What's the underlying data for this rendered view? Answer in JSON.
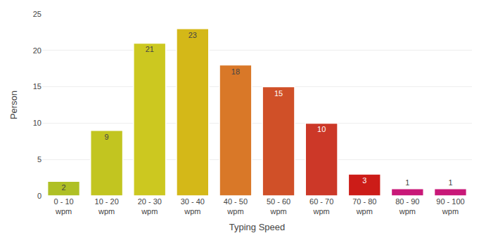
{
  "chart_data": {
    "type": "bar",
    "xlabel": "Typing Speed",
    "ylabel": "Person",
    "categories": [
      "0 - 10\nwpm",
      "10 - 20\nwpm",
      "20 - 30\nwpm",
      "30 - 40\nwpm",
      "40 - 50\nwpm",
      "50 - 60\nwpm",
      "60 - 70\nwpm",
      "70 - 80\nwpm",
      "80 - 90\nwpm",
      "90 - 100\nwpm"
    ],
    "values": [
      2,
      9,
      21,
      23,
      18,
      15,
      10,
      3,
      1,
      1
    ],
    "colors": [
      "#afc025",
      "#c2c520",
      "#ccc820",
      "#d4b818",
      "#d97828",
      "#d05028",
      "#cc3828",
      "#cc1c18",
      "#c81878",
      "#c81878"
    ],
    "ylim": [
      0,
      25
    ],
    "yticks": [
      0,
      5,
      10,
      15,
      20,
      25
    ],
    "grid": true,
    "data_labels": true
  }
}
